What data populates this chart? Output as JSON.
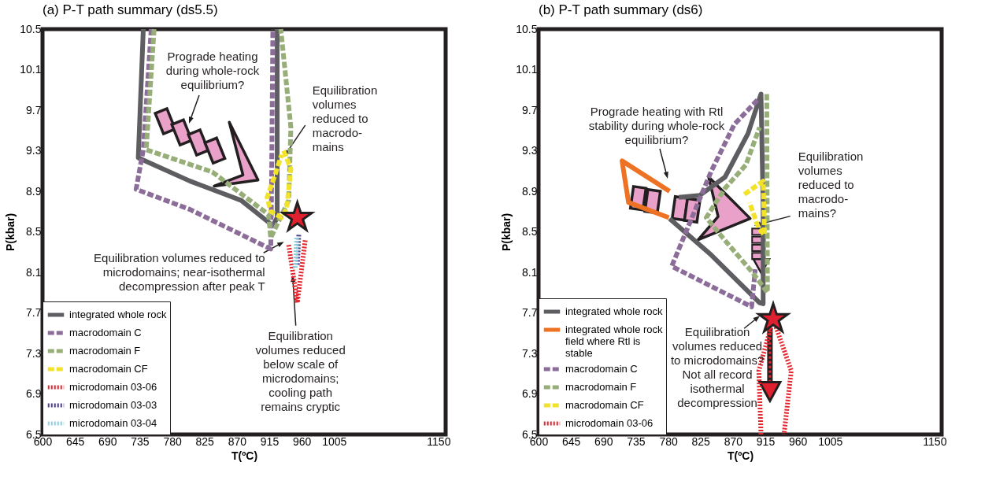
{
  "chart_data": [
    {
      "type": "line",
      "title": "(a) P-T path summary (ds5.5)",
      "xlabel": "T(ºC)",
      "ylabel": "P(kbar)",
      "xlim": [
        600,
        1160
      ],
      "ylim": [
        6.5,
        10.5
      ],
      "xticks": [
        600,
        645,
        690,
        735,
        780,
        825,
        870,
        915,
        960,
        1005,
        1150
      ],
      "yticks": [
        10.5,
        10.1,
        9.7,
        9.3,
        8.9,
        8.5,
        8.1,
        7.7,
        7.3,
        6.9,
        6.5
      ],
      "grid": false,
      "legend": "bottom left",
      "series": [
        {
          "name": "integrated whole rock",
          "color": "#5e5e62",
          "line_style": "solid",
          "x": [
            740,
            733,
            805,
            876,
            920,
            926,
            926
          ],
          "values": [
            10.5,
            9.23,
            9.0,
            8.81,
            8.56,
            8.64,
            10.5
          ]
        },
        {
          "name": "macrodomain C",
          "color": "#8c6d9a",
          "line_style": "dashed",
          "x": [
            751,
            740,
            730,
            805,
            917,
            918,
            920
          ],
          "values": [
            10.5,
            9.31,
            8.92,
            8.72,
            8.33,
            8.81,
            10.5
          ]
        },
        {
          "name": "macrodomain F",
          "color": "#98ae78",
          "line_style": "dashed",
          "x": [
            755,
            744,
            836,
            914,
            917,
            942,
            945,
            931
          ],
          "values": [
            10.5,
            9.31,
            9.09,
            8.67,
            8.44,
            8.81,
            9.53,
            10.5
          ]
        },
        {
          "name": "macrodomain CF",
          "color": "#f2e22a",
          "line_style": "dashed",
          "x": [
            935,
            945,
            939,
            932,
            917,
            912,
            923,
            932
          ],
          "values": [
            9.3,
            9.12,
            8.72,
            8.64,
            8.7,
            8.84,
            9.06,
            9.26
          ]
        },
        {
          "name": "microdomain 03-06",
          "color": "#e4262e",
          "line_style": "dotted",
          "x": [
            942,
            954,
            965
          ],
          "values": [
            8.37,
            7.8,
            8.42
          ]
        },
        {
          "name": "microdomain 03-03",
          "color": "#4a3f8e",
          "line_style": "dotted",
          "x": [
            956,
            954
          ],
          "values": [
            8.47,
            8.16
          ]
        },
        {
          "name": "microdomain 03-04",
          "color": "#8fd0df",
          "line_style": "dotted",
          "x": [
            953,
            951
          ],
          "values": [
            8.44,
            8.14
          ]
        },
        {
          "type": "scatter",
          "marker": "star",
          "color": "#e0202f",
          "x": [
            954
          ],
          "values": [
            8.64
          ]
        }
      ],
      "annotations": [
        "Prograde heating\nduring whole-rock\nequilibrium?",
        {
          "text": "Equilibration\nvolumes\nreduced to\nmacrodo-\nmains",
          "x": 942,
          "y": 9.21
        },
        {
          "text": "Equilibration volumes reduced to\nmicrodomains; near-isothermal\ndecompression after peak T",
          "x": 942,
          "y": 8.37
        },
        {
          "text": "Equilibration\nvolumes reduced\nbelow scale of\nmicrodomains;\ncooling path\nremains cryptic",
          "x": 954,
          "y": 8.04
        }
      ]
    },
    {
      "type": "line",
      "title": "(b) P-T path summary (ds6)",
      "xlabel": "T(ºC)",
      "ylabel": "P(kbar)",
      "xlim": [
        600,
        1160
      ],
      "ylim": [
        6.5,
        10.5
      ],
      "xticks": [
        600,
        645,
        690,
        735,
        780,
        825,
        870,
        915,
        960,
        1005,
        1150
      ],
      "yticks": [
        10.5,
        10.1,
        9.7,
        9.3,
        8.9,
        8.5,
        8.1,
        7.7,
        7.3,
        6.9,
        6.5
      ],
      "grid": false,
      "legend": "bottom left",
      "series": [
        {
          "name": "integrated whole rock",
          "color": "#5e5e62",
          "line_style": "solid",
          "x": [
            782,
            840,
            907,
            912,
            912,
            909,
            891,
            859,
            824,
            795
          ],
          "values": [
            8.63,
            8.27,
            7.8,
            7.79,
            8.76,
            9.86,
            9.47,
            9.04,
            8.86,
            8.84
          ]
        },
        {
          "name": "integrated whole rock\nfield where Rtl is\nstable",
          "color": "#ee7223",
          "line_style": "solid",
          "x": [
            782,
            716,
            725,
            781
          ],
          "values": [
            8.9,
            9.2,
            8.79,
            8.64
          ]
        },
        {
          "name": "macrodomain C",
          "color": "#8c6d9a",
          "line_style": "dashed",
          "x": [
            904,
            872,
            840,
            785,
            896,
            901
          ],
          "values": [
            9.8,
            9.56,
            9.1,
            8.16,
            7.76,
            8.13
          ]
        },
        {
          "name": "macrodomain F",
          "color": "#98ae78",
          "line_style": "dashed",
          "x": [
            917,
            918,
            897,
            856,
            833,
            859,
            888,
            907
          ],
          "values": [
            9.86,
            7.9,
            8.1,
            8.44,
            8.64,
            8.93,
            9.16,
            9.53
          ]
        },
        {
          "name": "macrodomain CF",
          "color": "#f2e22a",
          "line_style": "dashed",
          "x": [
            886,
            912,
            914,
            906,
            893
          ],
          "values": [
            8.87,
            9.0,
            8.47,
            8.53,
            8.79
          ]
        },
        {
          "name": "microdomain 03-06",
          "color": "#e4262e",
          "line_style": "dotted",
          "x": [
            909,
            906,
            926,
            951,
            941
          ],
          "values": [
            6.5,
            7.13,
            7.64,
            7.13,
            6.5
          ]
        },
        {
          "type": "scatter",
          "marker": "star",
          "color": "#e0202f",
          "x": [
            926
          ],
          "values": [
            7.64
          ]
        }
      ],
      "annotations": [
        "Prograde heating with Rtl\nstability during whole-rock\nequilibrium?",
        {
          "text": "Equilibration\nvolumes\nreduced to\nmacrodo-\nmains?",
          "x": 906,
          "y": 8.53
        },
        {
          "text": "Equilibration\nvolumes reduced\nto microdomains?\nNot all record\nisothermal\ndecompression",
          "x": 914,
          "y": 7.64
        }
      ]
    }
  ]
}
